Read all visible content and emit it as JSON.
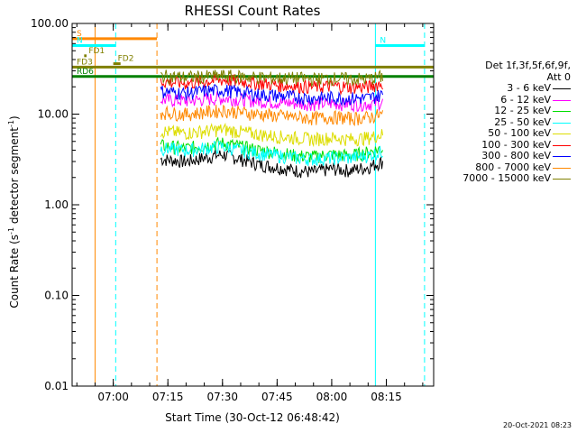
{
  "chart_data": {
    "type": "line",
    "title": "RHESSI Count Rates",
    "xlabel": "Start Time (30-Oct-12 06:48:42)",
    "ylabel_parts": [
      "Count Rate (s",
      "-1",
      " detector segment",
      "-1",
      ")"
    ],
    "yscale": "log",
    "ylim": [
      0.01,
      100
    ],
    "xlim": [
      "06:48:42",
      "08:28:00"
    ],
    "xticks": [
      "07:00",
      "07:15",
      "07:30",
      "07:45",
      "08:00",
      "08:15"
    ],
    "yticks": [
      "0.01",
      "0.10",
      "1.00",
      "10.00",
      "100.00"
    ],
    "yticks_values": [
      0.01,
      0.1,
      1,
      10,
      100
    ],
    "grid": false,
    "legend_position": "right",
    "legend_header": [
      "Det 1f,3f,5f,6f,9f,",
      "Att 0"
    ],
    "series": [
      {
        "name": "3 - 6 keV",
        "color": "#000000",
        "x": [
          "07:13",
          "07:20",
          "07:25",
          "07:30",
          "07:35",
          "07:40",
          "07:45",
          "07:50",
          "07:55",
          "08:00",
          "08:05",
          "08:10",
          "08:14"
        ],
        "y": [
          3.2,
          3.0,
          3.3,
          3.6,
          3.2,
          2.8,
          2.6,
          2.4,
          2.3,
          2.5,
          2.4,
          2.6,
          3.0
        ]
      },
      {
        "name": "6 - 12 keV",
        "color": "#ff00ff",
        "x": [
          "07:13",
          "07:20",
          "07:25",
          "07:30",
          "07:35",
          "07:40",
          "07:45",
          "07:50",
          "07:55",
          "08:00",
          "08:05",
          "08:10",
          "08:14"
        ],
        "y": [
          14.5,
          14,
          14.6,
          15,
          14.5,
          14,
          13.5,
          13.2,
          13,
          13.2,
          13,
          13,
          13.5
        ]
      },
      {
        "name": "12 - 25 keV",
        "color": "#00dd00",
        "x": [
          "07:13",
          "07:20",
          "07:25",
          "07:30",
          "07:35",
          "07:40",
          "07:45",
          "07:50",
          "07:55",
          "08:00",
          "08:05",
          "08:10",
          "08:14"
        ],
        "y": [
          4.5,
          4.2,
          4.5,
          4.8,
          4.4,
          4.0,
          3.8,
          3.5,
          3.4,
          3.6,
          3.5,
          3.8,
          4.2
        ]
      },
      {
        "name": "25 - 50 keV",
        "color": "#00ffff",
        "x": [
          "07:13",
          "07:20",
          "07:25",
          "07:30",
          "07:35",
          "07:40",
          "07:45",
          "07:50",
          "07:55",
          "08:00",
          "08:05",
          "08:10",
          "08:14"
        ],
        "y": [
          4.2,
          4.0,
          4.2,
          4.4,
          4.0,
          3.7,
          3.5,
          3.3,
          3.2,
          3.3,
          3.3,
          3.5,
          3.9
        ]
      },
      {
        "name": "50 - 100 keV",
        "color": "#dddd00",
        "x": [
          "07:13",
          "07:20",
          "07:25",
          "07:30",
          "07:35",
          "07:40",
          "07:45",
          "07:50",
          "07:55",
          "08:00",
          "08:05",
          "08:10",
          "08:14"
        ],
        "y": [
          6.5,
          6.2,
          6.5,
          6.8,
          6.4,
          6.0,
          5.7,
          5.5,
          5.3,
          5.5,
          5.3,
          5.5,
          6.0
        ]
      },
      {
        "name": "100 - 300 keV",
        "color": "#ff0000",
        "x": [
          "07:13",
          "07:20",
          "07:25",
          "07:30",
          "07:35",
          "07:40",
          "07:45",
          "07:50",
          "07:55",
          "08:00",
          "08:05",
          "08:10",
          "08:14"
        ],
        "y": [
          23,
          22,
          23,
          24,
          23,
          22,
          21,
          20.5,
          20,
          20.5,
          20,
          20,
          22
        ]
      },
      {
        "name": "300 - 800 keV",
        "color": "#0000ff",
        "x": [
          "07:13",
          "07:20",
          "07:25",
          "07:30",
          "07:35",
          "07:40",
          "07:45",
          "07:50",
          "07:55",
          "08:00",
          "08:05",
          "08:10",
          "08:14"
        ],
        "y": [
          18,
          17,
          18,
          18.5,
          17.5,
          16.5,
          16,
          15.5,
          15,
          15.3,
          15,
          15,
          16.5
        ]
      },
      {
        "name": "800 - 7000 keV",
        "color": "#ff8800",
        "x": [
          "07:13",
          "07:20",
          "07:25",
          "07:30",
          "07:35",
          "07:40",
          "07:45",
          "07:50",
          "07:55",
          "08:00",
          "08:05",
          "08:10",
          "08:14"
        ],
        "y": [
          10.5,
          10,
          10.5,
          11,
          10.5,
          10,
          9.6,
          9.3,
          9,
          9.3,
          9,
          9.2,
          10
        ]
      },
      {
        "name": "7000 - 15000 keV",
        "color": "#808000",
        "x": [
          "07:13",
          "07:20",
          "07:25",
          "07:30",
          "07:35",
          "07:40",
          "07:45",
          "07:50",
          "07:55",
          "08:00",
          "08:05",
          "08:10",
          "08:14"
        ],
        "y": [
          26.5,
          25.5,
          26,
          26.5,
          26,
          25.5,
          25,
          25,
          24.5,
          25,
          24.5,
          24.5,
          26
        ]
      }
    ],
    "annotations": [
      {
        "label": "S",
        "color": "#ff8800",
        "y": 68,
        "x_start": "06:48:42",
        "x_end": "07:12:00"
      },
      {
        "label": "N",
        "color": "#00ffff",
        "y": 57,
        "x_start": "06:48:42",
        "x_end": "07:00:40"
      },
      {
        "label": "N",
        "color": "#00ffff",
        "y": 57,
        "x_start": "08:12:00",
        "x_end": "08:25:30"
      },
      {
        "label": "FD1",
        "color": "#808000",
        "y": 44,
        "x_start": "06:52:00",
        "x_end": "06:52:40"
      },
      {
        "label": "FD2",
        "color": "#808000",
        "y": 36,
        "x_start": "07:00:00",
        "x_end": "07:02:00"
      },
      {
        "label": "FD3",
        "color": "#808000",
        "y": 33,
        "x_start": "06:48:42",
        "x_end": "08:28:00"
      },
      {
        "label": "RD6",
        "color": "#008000",
        "y": 26,
        "x_start": "06:48:42",
        "x_end": "08:28:00"
      }
    ],
    "vlines": [
      {
        "x": "06:48:42",
        "color": "#00ffff",
        "style": "solid"
      },
      {
        "x": "06:55:00",
        "color": "#ff8800",
        "style": "solid"
      },
      {
        "x": "07:00:40",
        "color": "#00ffff",
        "style": "dashed"
      },
      {
        "x": "07:12:00",
        "color": "#ff8800",
        "style": "dashed"
      },
      {
        "x": "08:12:00",
        "color": "#00ffff",
        "style": "solid"
      },
      {
        "x": "08:25:30",
        "color": "#00ffff",
        "style": "dashed"
      }
    ]
  },
  "footer_timestamp": "20-Oct-2021 08:23"
}
